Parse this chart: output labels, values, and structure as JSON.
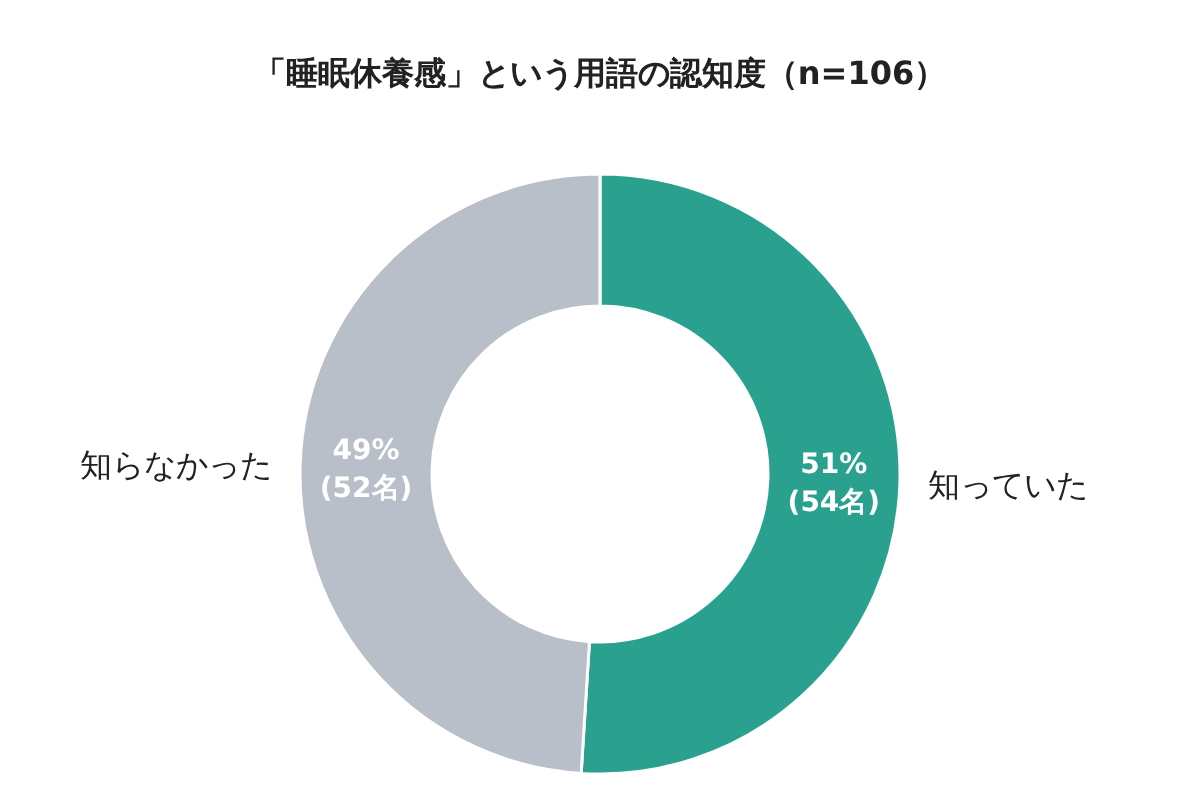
{
  "chart_data": {
    "type": "donut",
    "title": "「睡眠休養感」という用語の認知度（n=106）",
    "categories": [
      "知っていた",
      "知らなかった"
    ],
    "values": [
      51,
      49
    ],
    "value_labels": [
      "51%\n(54名)",
      "49%\n(52名)"
    ],
    "colors": [
      "#2aa18f",
      "#b8bfc8"
    ]
  }
}
